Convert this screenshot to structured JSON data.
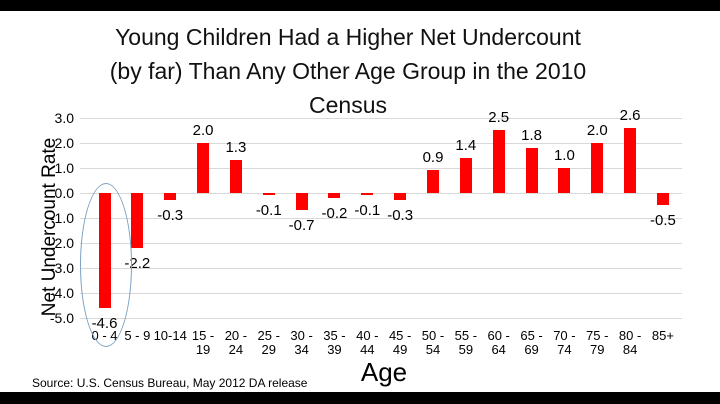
{
  "window": {
    "top_bar_color": "#000000",
    "bottom_bar_color": "#000000",
    "background_color": "#ffffff"
  },
  "title_lines": [
    "Young Children Had a Higher Net Undercount",
    "(by far) Than Any Other Age Group in the 2010",
    "Census"
  ],
  "source_note": "Source: U.S. Census Bureau, May 2012 DA release",
  "chart_data": {
    "type": "bar",
    "title": "Young Children Had a Higher Net Undercount (by far) Than Any Other Age Group in the 2010 Census",
    "xlabel": "Age",
    "ylabel": "Net Undercount Rate",
    "categories": [
      "0 - 4",
      "5 - 9",
      "10-14",
      "15 - 19",
      "20 - 24",
      "25 - 29",
      "30 - 34",
      "35 - 39",
      "40 - 44",
      "45 - 49",
      "50 - 54",
      "55 - 59",
      "60 - 64",
      "65 - 69",
      "70 - 74",
      "75 - 79",
      "80 - 84",
      "85+"
    ],
    "category_label_lines": [
      [
        "0 - 4"
      ],
      [
        "5 - 9"
      ],
      [
        "10-14"
      ],
      [
        "15 -",
        "19"
      ],
      [
        "20 -",
        "24"
      ],
      [
        "25 -",
        "29"
      ],
      [
        "30 -",
        "34"
      ],
      [
        "35 -",
        "39"
      ],
      [
        "40 -",
        "44"
      ],
      [
        "45 -",
        "49"
      ],
      [
        "50 -",
        "54"
      ],
      [
        "55 -",
        "59"
      ],
      [
        "60 -",
        "64"
      ],
      [
        "65 -",
        "69"
      ],
      [
        "70 -",
        "74"
      ],
      [
        "75 -",
        "79"
      ],
      [
        "80 -",
        "84"
      ],
      [
        "85+"
      ]
    ],
    "values": [
      -4.6,
      -2.2,
      -0.3,
      2.0,
      1.3,
      -0.1,
      -0.7,
      -0.2,
      -0.1,
      -0.3,
      0.9,
      1.4,
      2.5,
      1.8,
      1.0,
      2.0,
      2.6,
      -0.5
    ],
    "value_labels": [
      "-4.6",
      "-2.2",
      "-0.3",
      "2.0",
      "1.3",
      "-0.1",
      "-0.7",
      "-0.2",
      "-0.1",
      "-0.3",
      "0.9",
      "1.4",
      "2.5",
      "1.8",
      "1.0",
      "2.0",
      "2.6",
      "-0.5"
    ],
    "y_ticks": [
      3.0,
      2.0,
      1.0,
      0.0,
      -1.0,
      -2.0,
      -3.0,
      -4.0,
      -5.0
    ],
    "y_tick_labels": [
      "3.0",
      "2.0",
      "1.0",
      "0.0",
      "-1.0",
      "-2.0",
      "-3.0",
      "-4.0",
      "-5.0"
    ],
    "ylim": [
      -5.0,
      3.0
    ],
    "grid": true,
    "legend": false,
    "bar_color": "#ff0000",
    "gridline_color": "#d9d9d9",
    "annotation": {
      "shape": "ellipse",
      "target_category": "0 - 4",
      "meaning": "highlight of largest net undercount",
      "color": "#7ba2c6"
    }
  }
}
